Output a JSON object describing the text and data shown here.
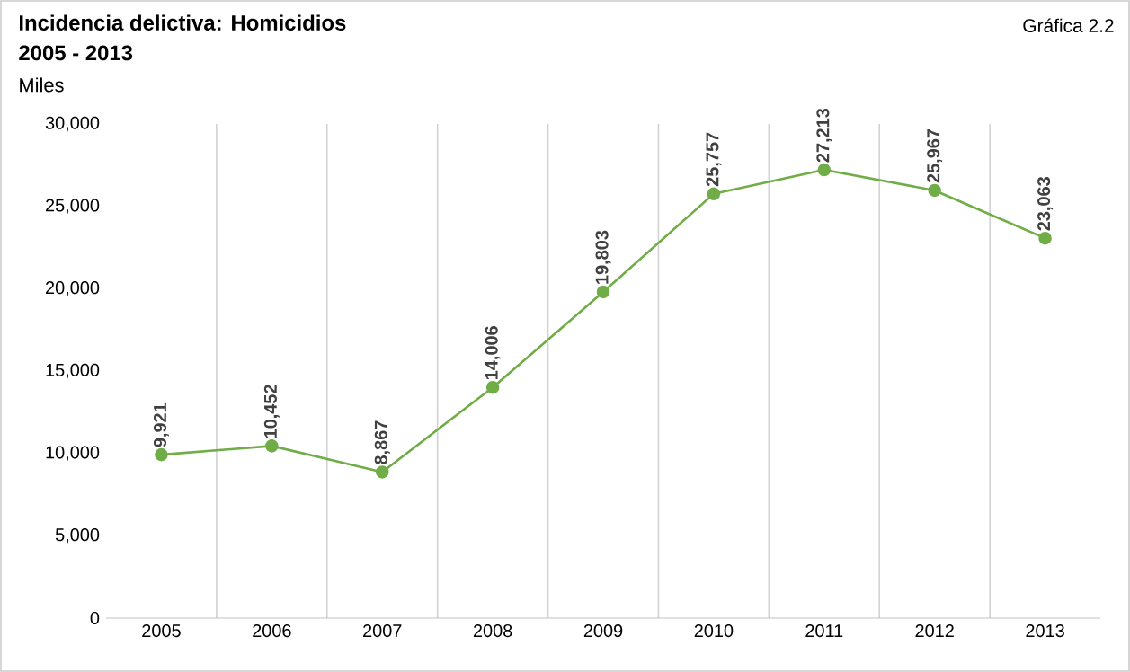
{
  "chart_data": {
    "type": "line",
    "title": "Incidencia delictiva: Homicidios",
    "subtitle": "2005 - 2013",
    "ylabel": "Miles",
    "annotations": [
      "Gráfica 2.2"
    ],
    "categories": [
      "2005",
      "2006",
      "2007",
      "2008",
      "2009",
      "2010",
      "2011",
      "2012",
      "2013"
    ],
    "values": [
      9921,
      10452,
      8867,
      14006,
      19803,
      25757,
      27213,
      25967,
      23063
    ],
    "value_labels": [
      "9,921",
      "10,452",
      "8,867",
      "14,006",
      "19,803",
      "25,757",
      "27,213",
      "25,967",
      "23,063"
    ],
    "color": "#70ad47",
    "marker": "circle",
    "grid": "x",
    "ylim": [
      0,
      30000
    ],
    "yticks": [
      {
        "value": 0,
        "label": "0"
      },
      {
        "value": 5000,
        "label": "5,000"
      },
      {
        "value": 10000,
        "label": "10,000"
      },
      {
        "value": 15000,
        "label": "15,000"
      },
      {
        "value": 20000,
        "label": "20,000"
      },
      {
        "value": 25000,
        "label": "25,000"
      },
      {
        "value": 30000,
        "label": "30,000"
      }
    ]
  }
}
